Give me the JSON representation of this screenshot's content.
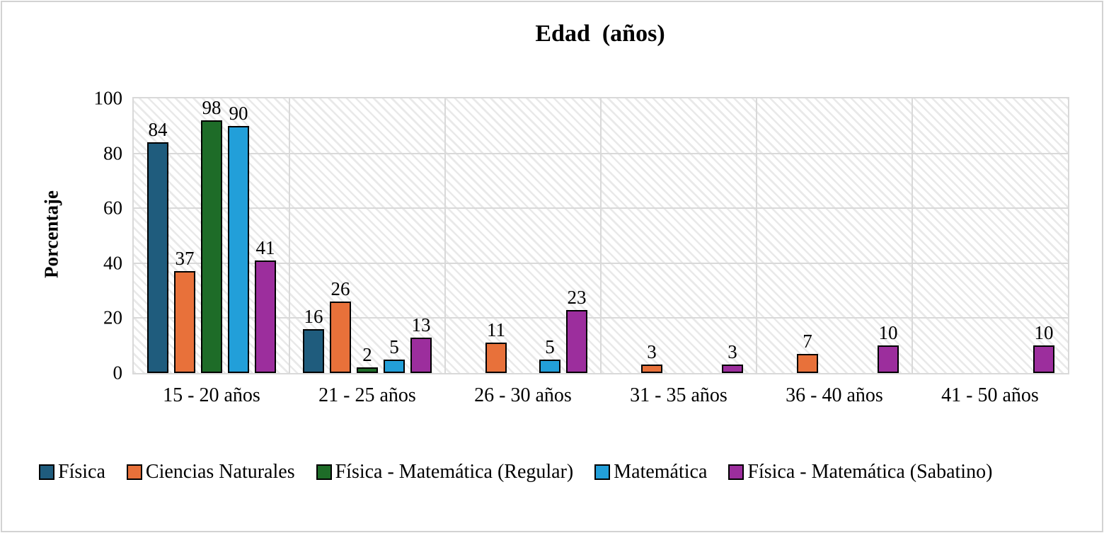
{
  "title": "Edad  (años)",
  "chart_data": {
    "type": "bar",
    "title": "Edad  (años)",
    "xlabel": "",
    "ylabel": "Porcentaje",
    "ylim": [
      0,
      100
    ],
    "yticks": [
      0,
      20,
      40,
      60,
      80,
      100
    ],
    "grid": true,
    "plot_background": "light diagonal hatch pattern",
    "legend_position": "bottom-left",
    "categories": [
      "15 - 20 años",
      "21 - 25 años",
      "26 - 30 años",
      "31 - 35 años",
      "36 - 40 años",
      "41 - 50 años"
    ],
    "series": [
      {
        "name": "Física",
        "color": "#1F5C7D",
        "values": [
          84,
          16,
          0,
          0,
          0,
          0
        ]
      },
      {
        "name": "Ciencias Naturales",
        "color": "#E8713A",
        "values": [
          37,
          26,
          11,
          3,
          7,
          0
        ]
      },
      {
        "name": "Física - Matemática (Regular)",
        "color": "#1E6C28",
        "values": [
          98,
          2,
          0,
          0,
          0,
          0
        ]
      },
      {
        "name": "Matemática",
        "color": "#229FD9",
        "values": [
          90,
          5,
          5,
          0,
          0,
          0
        ]
      },
      {
        "name": "Física - Matemática (Sabatino)",
        "color": "#9C2E9D",
        "values": [
          41,
          13,
          23,
          3,
          10,
          10
        ]
      }
    ],
    "bar_labels": "values shown above each nonzero bar",
    "bar_outline_color": "#000000",
    "gridline_color": "#D9D9D9"
  }
}
